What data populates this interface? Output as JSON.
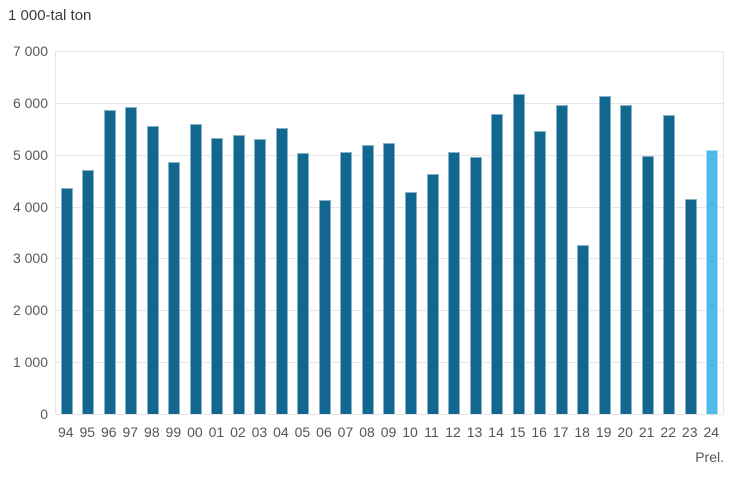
{
  "title": "1 000-tal ton",
  "chart_data": {
    "type": "bar",
    "title": "1 000-tal ton",
    "ylabel": "1 000-tal ton",
    "xlabel": "",
    "ylim": [
      0,
      7000
    ],
    "ytick_interval": 1000,
    "ytick_labels": [
      "7 000",
      "6 000",
      "5 000",
      "4 000",
      "3 000",
      "2 000",
      "1 000",
      "0"
    ],
    "grid": "horizontal-only",
    "legend_position": "none",
    "categories": [
      "94",
      "95",
      "96",
      "97",
      "98",
      "99",
      "00",
      "01",
      "02",
      "03",
      "04",
      "05",
      "06",
      "07",
      "08",
      "09",
      "10",
      "11",
      "12",
      "13",
      "14",
      "15",
      "16",
      "17",
      "18",
      "19",
      "20",
      "21",
      "22",
      "23",
      "24"
    ],
    "values": [
      4350,
      4710,
      5870,
      5930,
      5560,
      4860,
      5590,
      5320,
      5390,
      5300,
      5520,
      5030,
      4130,
      5060,
      5190,
      5220,
      4280,
      4630,
      5060,
      4960,
      5780,
      6170,
      5460,
      5960,
      3250,
      6140,
      5950,
      4970,
      5770,
      4140,
      5100
    ],
    "last_bar_is_preliminary": true,
    "annotation": {
      "text": "Prel.",
      "position": "below-last-x-label"
    },
    "colors": {
      "bar": "#11678F",
      "prelim_bar": "#4EBBEB",
      "gridline": "#e6e6e6",
      "axis_text": "#595959",
      "title_text": "#3d3d3d"
    }
  }
}
